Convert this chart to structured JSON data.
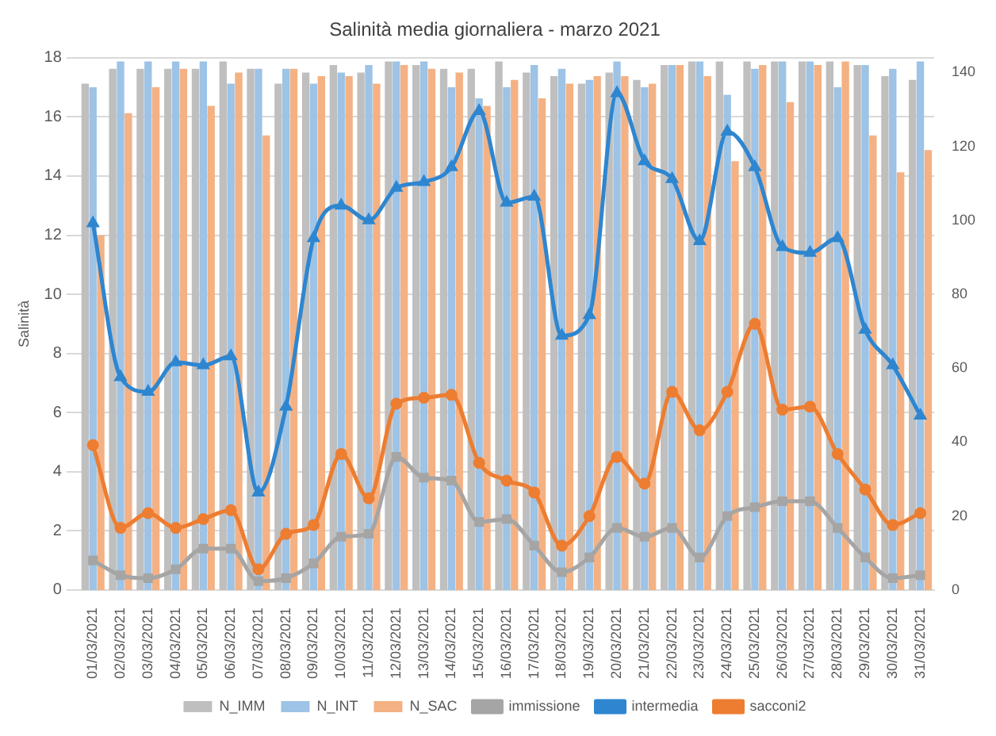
{
  "chart_data": {
    "type": "bar",
    "title": "Salinità media giornaliera - marzo 2021",
    "ylabel": "Salinità",
    "categories": [
      "01/03/2021",
      "02/03/2021",
      "03/03/2021",
      "04/03/2021",
      "05/03/2021",
      "06/03/2021",
      "07/03/2021",
      "08/03/2021",
      "09/03/2021",
      "10/03/2021",
      "11/03/2021",
      "12/03/2021",
      "13/03/2021",
      "14/03/2021",
      "15/03/2021",
      "16/03/2021",
      "17/03/2021",
      "18/03/2021",
      "19/03/2021",
      "20/03/2021",
      "21/03/2021",
      "22/03/2021",
      "23/03/2021",
      "24/03/2021",
      "25/03/2021",
      "26/03/2021",
      "27/03/2021",
      "28/03/2021",
      "29/03/2021",
      "30/03/2021",
      "31/03/2021"
    ],
    "series": [
      {
        "name": "N_IMM",
        "axis": "y2",
        "color": "#bfbfbf",
        "values": [
          137,
          141,
          141,
          141,
          141,
          143,
          141,
          137,
          140,
          142,
          140,
          143,
          142,
          141,
          141,
          143,
          140,
          139,
          137,
          140,
          138,
          142,
          143,
          143,
          143,
          143,
          143,
          143,
          142,
          139,
          138
        ]
      },
      {
        "name": "N_INT",
        "axis": "y2",
        "color": "#9dc3e6",
        "values": [
          136,
          143,
          143,
          143,
          143,
          137,
          141,
          141,
          137,
          140,
          142,
          143,
          143,
          136,
          133,
          136,
          142,
          141,
          138,
          143,
          136,
          142,
          143,
          134,
          141,
          143,
          143,
          136,
          142,
          141,
          143
        ]
      },
      {
        "name": "N_SAC",
        "axis": "y2",
        "color": "#f4b183",
        "values": [
          96,
          129,
          136,
          141,
          131,
          140,
          123,
          141,
          139,
          139,
          137,
          142,
          141,
          140,
          131,
          138,
          133,
          137,
          139,
          139,
          137,
          142,
          139,
          116,
          142,
          132,
          142,
          143,
          123,
          113,
          119
        ]
      },
      {
        "name": "immissione",
        "type": "line",
        "marker": "square",
        "color": "#a5a5a5",
        "values": [
          1.0,
          0.5,
          0.4,
          0.7,
          1.4,
          1.4,
          0.3,
          0.4,
          0.9,
          1.8,
          1.9,
          4.5,
          3.8,
          3.7,
          2.3,
          2.4,
          1.5,
          0.6,
          1.1,
          2.1,
          1.8,
          2.1,
          1.1,
          2.5,
          2.8,
          3.0,
          3.0,
          2.1,
          1.1,
          0.4,
          0.5
        ]
      },
      {
        "name": "intermedia",
        "type": "line",
        "marker": "triangle",
        "color": "#2e86d0",
        "values": [
          12.4,
          7.2,
          6.7,
          7.7,
          7.6,
          7.9,
          3.3,
          6.2,
          11.9,
          13.0,
          12.5,
          13.6,
          13.8,
          14.3,
          16.2,
          13.1,
          13.3,
          8.6,
          9.3,
          16.8,
          14.5,
          13.9,
          11.8,
          15.5,
          14.3,
          11.6,
          11.4,
          11.9,
          8.8,
          7.6,
          5.9
        ]
      },
      {
        "name": "sacconi2",
        "type": "line",
        "marker": "circle",
        "color": "#ed7d31",
        "values": [
          4.9,
          2.1,
          2.6,
          2.1,
          2.4,
          2.7,
          0.7,
          1.9,
          2.2,
          4.6,
          3.1,
          6.3,
          6.5,
          6.6,
          4.3,
          3.7,
          3.3,
          1.5,
          2.5,
          4.5,
          3.6,
          6.7,
          5.4,
          6.7,
          9.0,
          6.1,
          6.2,
          4.6,
          3.4,
          2.2,
          2.6
        ]
      }
    ],
    "ylim": [
      0,
      18
    ],
    "yticks": [
      0,
      2,
      4,
      6,
      8,
      10,
      12,
      14,
      16,
      18
    ],
    "y2lim": [
      0,
      144
    ],
    "y2ticks": [
      0,
      20,
      40,
      60,
      80,
      100,
      120,
      140
    ],
    "grid": "y",
    "legend": "bottom",
    "line_style": "solid"
  }
}
